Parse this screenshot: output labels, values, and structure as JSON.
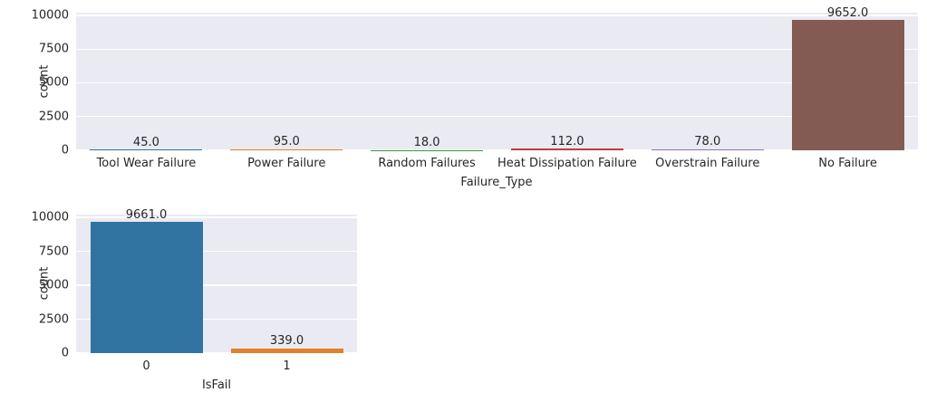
{
  "figure": {
    "background_color": "#ffffff",
    "plot_background_color": "#EAEAF2",
    "grid_color": "#ffffff",
    "text_color": "#262626"
  },
  "chart_data": [
    {
      "type": "bar",
      "title": "",
      "xlabel": "Failure_Type",
      "ylabel": "count",
      "categories": [
        "Tool Wear Failure",
        "Power Failure",
        "Random Failures",
        "Heat Dissipation Failure",
        "Overstrain Failure",
        "No Failure"
      ],
      "values": [
        45,
        95,
        18,
        112,
        78,
        9652
      ],
      "bar_labels": [
        "45.0",
        "95.0",
        "18.0",
        "112.0",
        "78.0",
        "9652.0"
      ],
      "bar_colors": [
        "#3274A1",
        "#E1812C",
        "#3A923A",
        "#C03D3E",
        "#9372B2",
        "#845B53"
      ],
      "yticks": [
        0,
        2500,
        5000,
        7500,
        10000
      ],
      "ytick_labels": [
        "0",
        "2500",
        "5000",
        "7500",
        "10000"
      ],
      "ylim": [
        0,
        10200
      ],
      "grid": true,
      "legend": "none",
      "bar_width_frac": 0.8
    },
    {
      "type": "bar",
      "title": "",
      "xlabel": "IsFail",
      "ylabel": "count",
      "categories": [
        "0",
        "1"
      ],
      "values": [
        9661,
        339
      ],
      "bar_labels": [
        "9661.0",
        "339.0"
      ],
      "bar_colors": [
        "#3274A1",
        "#E1812C"
      ],
      "yticks": [
        0,
        2500,
        5000,
        7500,
        10000
      ],
      "ytick_labels": [
        "0",
        "2500",
        "5000",
        "7500",
        "10000"
      ],
      "ylim": [
        0,
        10200
      ],
      "grid": true,
      "legend": "none",
      "bar_width_frac": 0.8
    }
  ]
}
